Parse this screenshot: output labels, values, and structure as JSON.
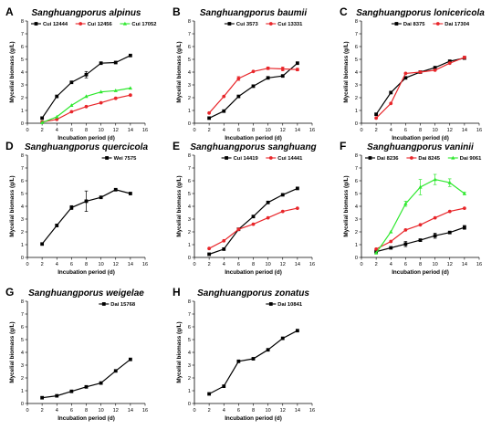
{
  "figure": {
    "colors": {
      "black": "#000000",
      "red": "#e8262a",
      "green": "#2ee82e",
      "axis": "#000000"
    },
    "x_axis_label": "Incubation period (d)",
    "y_axis_label": "Mycelial biomass (g/L)",
    "x_ticks": [
      0,
      2,
      4,
      6,
      8,
      10,
      12,
      14,
      16
    ],
    "y_ticks": [
      0,
      1,
      2,
      3,
      4,
      5,
      6,
      7,
      8
    ]
  },
  "chart_data": [
    {
      "label": "A",
      "type": "line",
      "title": "Sanghuangporus alpinus",
      "xlabel": "Incubation period (d)",
      "ylabel": "Mycelial biomass (g/L)",
      "xlim": [
        0,
        16
      ],
      "ylim": [
        0,
        8
      ],
      "x": [
        2,
        4,
        6,
        8,
        10,
        12,
        14
      ],
      "series": [
        {
          "name": "Cui 12444",
          "color": "#000000",
          "values": [
            0.4,
            2.1,
            3.2,
            3.8,
            4.7,
            4.75,
            5.3
          ],
          "error": [
            0,
            0,
            0,
            0.25,
            0,
            0,
            0
          ]
        },
        {
          "name": "Cui 12456",
          "color": "#e8262a",
          "values": [
            0.1,
            0.3,
            0.9,
            1.3,
            1.6,
            1.95,
            2.2
          ],
          "error": [
            0,
            0,
            0,
            0,
            0,
            0,
            0
          ]
        },
        {
          "name": "Cui 17052",
          "color": "#2ee82e",
          "values": [
            0.05,
            0.5,
            1.4,
            2.1,
            2.45,
            2.55,
            2.75
          ],
          "error": [
            0,
            0,
            0,
            0,
            0,
            0,
            0
          ]
        }
      ]
    },
    {
      "label": "B",
      "type": "line",
      "title": "Sanghuangporus baumii",
      "xlabel": "Incubation period (d)",
      "ylabel": "Mycelial biomass (g/L)",
      "xlim": [
        0,
        16
      ],
      "ylim": [
        0,
        8
      ],
      "x": [
        2,
        4,
        6,
        8,
        10,
        12,
        14
      ],
      "series": [
        {
          "name": "Cui 3573",
          "color": "#000000",
          "values": [
            0.4,
            0.95,
            2.1,
            2.9,
            3.55,
            3.7,
            4.7
          ],
          "error": [
            0,
            0,
            0,
            0,
            0,
            0,
            0
          ]
        },
        {
          "name": "Cui 13331",
          "color": "#e8262a",
          "values": [
            0.8,
            2.1,
            3.5,
            4.05,
            4.3,
            4.25,
            4.2
          ],
          "error": [
            0,
            0,
            0.15,
            0,
            0.1,
            0.15,
            0.1
          ]
        }
      ]
    },
    {
      "label": "C",
      "type": "line",
      "title": "Sanghuangporus lonicericola",
      "xlabel": "Incubation period (d)",
      "ylabel": "Mycelial biomass (g/L)",
      "xlim": [
        0,
        16
      ],
      "ylim": [
        0,
        8
      ],
      "x": [
        2,
        4,
        6,
        8,
        10,
        12,
        14
      ],
      "series": [
        {
          "name": "Dai 8375",
          "color": "#000000",
          "values": [
            0.7,
            2.4,
            3.55,
            4.0,
            4.35,
            4.85,
            5.1
          ],
          "error": [
            0,
            0,
            0,
            0,
            0,
            0,
            0
          ]
        },
        {
          "name": "Dai 17304",
          "color": "#e8262a",
          "values": [
            0.4,
            1.55,
            3.9,
            4.0,
            4.15,
            4.7,
            5.15
          ],
          "error": [
            0,
            0,
            0,
            0,
            0,
            0,
            0.1
          ]
        }
      ]
    },
    {
      "label": "D",
      "type": "line",
      "title": "Sanghuangporus quercicola",
      "xlabel": "Incubation period (d)",
      "ylabel": "Mycelial biomass (g/L)",
      "xlim": [
        0,
        16
      ],
      "ylim": [
        0,
        8
      ],
      "x": [
        2,
        4,
        6,
        8,
        10,
        12,
        14
      ],
      "series": [
        {
          "name": "Wei 7575",
          "color": "#000000",
          "values": [
            1.05,
            2.5,
            3.9,
            4.4,
            4.7,
            5.3,
            5.0
          ],
          "error": [
            0,
            0.1,
            0.15,
            0.8,
            0,
            0,
            0
          ]
        }
      ]
    },
    {
      "label": "E",
      "type": "line",
      "title": "Sanghuangporus sanghuang",
      "xlabel": "Incubation period (d)",
      "ylabel": "Mycelial biomass (g/L)",
      "xlim": [
        0,
        16
      ],
      "ylim": [
        0,
        8
      ],
      "x": [
        2,
        4,
        6,
        8,
        10,
        12,
        14
      ],
      "series": [
        {
          "name": "Cui 14419",
          "color": "#000000",
          "values": [
            0.25,
            0.65,
            2.2,
            3.2,
            4.3,
            4.9,
            5.4
          ],
          "error": [
            0,
            0,
            0,
            0,
            0,
            0,
            0
          ]
        },
        {
          "name": "Cui 14441",
          "color": "#e8262a",
          "values": [
            0.7,
            1.3,
            2.2,
            2.6,
            3.1,
            3.6,
            3.85
          ],
          "error": [
            0,
            0,
            0,
            0,
            0,
            0,
            0
          ]
        }
      ]
    },
    {
      "label": "F",
      "type": "line",
      "title": "Sanghuangporus vaninii",
      "xlabel": "Incubation period (d)",
      "ylabel": "Mycelial biomass (g/L)",
      "xlim": [
        0,
        16
      ],
      "ylim": [
        0,
        8
      ],
      "x": [
        2,
        4,
        6,
        8,
        10,
        12,
        14
      ],
      "series": [
        {
          "name": "Dai 8236",
          "color": "#000000",
          "values": [
            0.45,
            0.75,
            1.05,
            1.35,
            1.7,
            1.95,
            2.35
          ],
          "error": [
            0,
            0,
            0.2,
            0,
            0.2,
            0.1,
            0.15
          ]
        },
        {
          "name": "Dai 8245",
          "color": "#e8262a",
          "values": [
            0.65,
            1.25,
            2.15,
            2.55,
            3.1,
            3.6,
            3.85
          ],
          "error": [
            0,
            0,
            0,
            0,
            0,
            0,
            0
          ]
        },
        {
          "name": "Dai 9061",
          "color": "#2ee82e",
          "values": [
            0.35,
            2.0,
            4.2,
            5.5,
            6.1,
            5.85,
            5.0
          ],
          "error": [
            0,
            0,
            0.2,
            0.6,
            0.4,
            0.3,
            0.1
          ]
        }
      ]
    },
    {
      "label": "G",
      "type": "line",
      "title": "Sanghuangporus weigelae",
      "xlabel": "Incubation period (d)",
      "ylabel": "Mycelial biomass (g/L)",
      "xlim": [
        0,
        16
      ],
      "ylim": [
        0,
        8
      ],
      "x": [
        2,
        4,
        6,
        8,
        10,
        12,
        14
      ],
      "series": [
        {
          "name": "Dai 15768",
          "color": "#000000",
          "values": [
            0.45,
            0.6,
            0.95,
            1.3,
            1.6,
            2.55,
            3.45
          ],
          "error": [
            0,
            0,
            0,
            0,
            0,
            0,
            0
          ]
        }
      ]
    },
    {
      "label": "H",
      "type": "line",
      "title": "Sanghuangporus zonatus",
      "xlabel": "Incubation period (d)",
      "ylabel": "Mycelial biomass (g/L)",
      "xlim": [
        0,
        16
      ],
      "ylim": [
        0,
        8
      ],
      "x": [
        2,
        4,
        6,
        8,
        10,
        12,
        14
      ],
      "series": [
        {
          "name": "Dai 10841",
          "color": "#000000",
          "values": [
            0.75,
            1.35,
            3.3,
            3.5,
            4.2,
            5.1,
            5.7
          ],
          "error": [
            0,
            0,
            0,
            0,
            0,
            0,
            0
          ]
        }
      ]
    }
  ]
}
